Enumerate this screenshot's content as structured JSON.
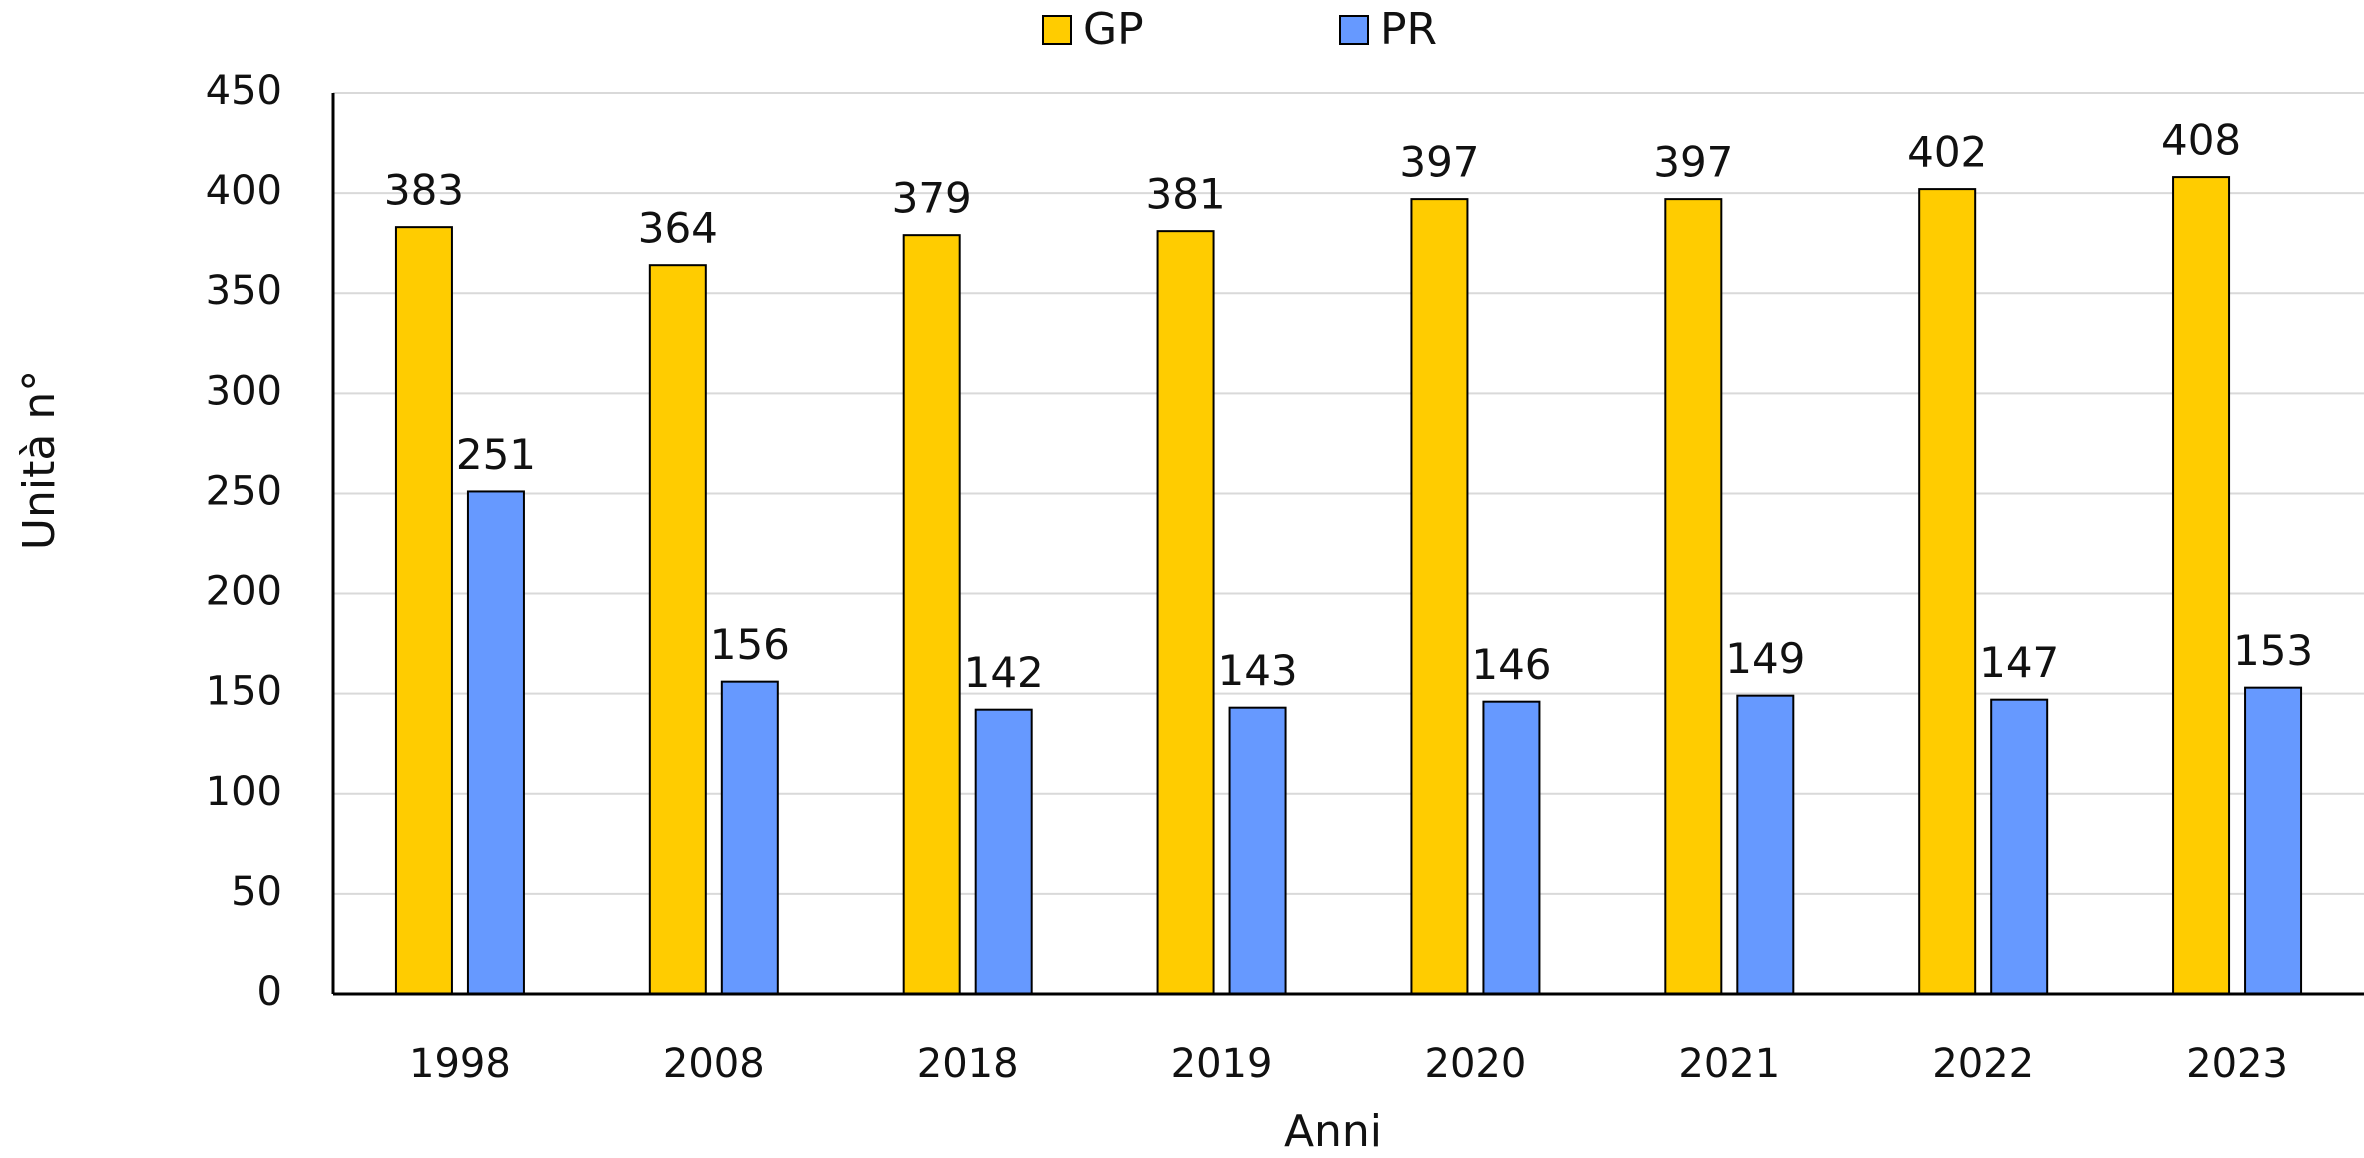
{
  "chart_data": {
    "type": "bar",
    "x_label": "Anni",
    "y_label": "Unità n°",
    "categories": [
      "1998",
      "2008",
      "2018",
      "2019",
      "2020",
      "2021",
      "2022",
      "2023"
    ],
    "series": [
      {
        "name": "GP",
        "color": "#ffcc00",
        "values": [
          383,
          364,
          379,
          381,
          397,
          397,
          402,
          408
        ]
      },
      {
        "name": "PR",
        "color": "#6699ff",
        "values": [
          251,
          156,
          142,
          143,
          146,
          149,
          147,
          153
        ]
      }
    ],
    "ylim": [
      0,
      450
    ],
    "yticks": [
      0,
      50,
      100,
      150,
      200,
      250,
      300,
      350,
      400,
      450
    ],
    "grid": true,
    "legend": "top"
  }
}
